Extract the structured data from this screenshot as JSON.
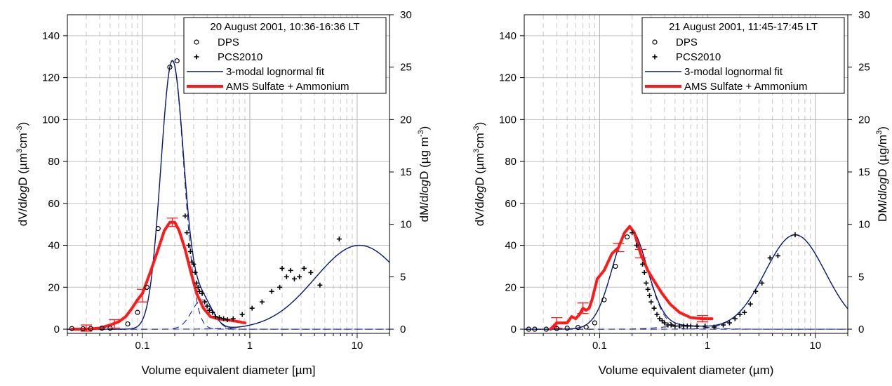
{
  "chart_data": [
    {
      "type": "line",
      "title": "20 August 2001, 10:36-16:36 LT",
      "xlabel": "Volume equivalent diameter [µm]",
      "ylabel": {
        "pre": "dV/d",
        "italic": "log",
        "post": "D (µm",
        "sup1": "3",
        "mid": "cm",
        "sup2": "-3",
        "end": ")"
      },
      "y2label": {
        "pre": "dM/d",
        "italic": "log",
        "post": "D (µg m",
        "sup1": "-3",
        "end": ")"
      },
      "xscale": "log",
      "xlim": [
        0.02,
        20
      ],
      "ylim": [
        -2,
        150
      ],
      "y2lim": [
        -0.4,
        30
      ],
      "x_ticks": [
        {
          "v": 0.1,
          "label": "0.1"
        },
        {
          "v": 1,
          "label": "1"
        },
        {
          "v": 10,
          "label": "10"
        }
      ],
      "y_ticks": [
        0,
        20,
        40,
        60,
        80,
        100,
        120,
        140
      ],
      "y2_ticks": [
        0,
        5,
        10,
        15,
        20,
        25,
        30
      ],
      "grid": true,
      "legend_position": "top-right",
      "legend": [
        {
          "label": "DPS",
          "marker": "circle"
        },
        {
          "label": "PCS2010",
          "marker": "plus"
        },
        {
          "label": "3-modal lognormal fit",
          "marker": "thin-line"
        },
        {
          "label": "AMS Sulfate + Ammonium",
          "marker": "thick-line"
        }
      ],
      "dps": [
        [
          0.022,
          0.3
        ],
        [
          0.028,
          0.2
        ],
        [
          0.033,
          0.3
        ],
        [
          0.042,
          0.5
        ],
        [
          0.05,
          0.5
        ],
        [
          0.073,
          2.5
        ],
        [
          0.09,
          8
        ],
        [
          0.11,
          20
        ],
        [
          0.14,
          48
        ],
        [
          0.18,
          125
        ],
        [
          0.21,
          128
        ]
      ],
      "pcs": [
        [
          0.25,
          54
        ],
        [
          0.26,
          46
        ],
        [
          0.27,
          40
        ],
        [
          0.28,
          37
        ],
        [
          0.29,
          32
        ],
        [
          0.3,
          31
        ],
        [
          0.31,
          27
        ],
        [
          0.32,
          22
        ],
        [
          0.33,
          20
        ],
        [
          0.34,
          18
        ],
        [
          0.36,
          17
        ],
        [
          0.38,
          13
        ],
        [
          0.4,
          11
        ],
        [
          0.42,
          9
        ],
        [
          0.45,
          8
        ],
        [
          0.48,
          6
        ],
        [
          0.52,
          5.5
        ],
        [
          0.57,
          5
        ],
        [
          0.62,
          4.5
        ],
        [
          0.7,
          5
        ],
        [
          0.85,
          7
        ],
        [
          1.05,
          10
        ],
        [
          1.3,
          13
        ],
        [
          1.6,
          18
        ],
        [
          1.9,
          20
        ],
        [
          2.0,
          29
        ],
        [
          2.2,
          25
        ],
        [
          2.4,
          28
        ],
        [
          2.6,
          24
        ],
        [
          2.9,
          25
        ],
        [
          3.2,
          29
        ],
        [
          3.7,
          27
        ],
        [
          4.5,
          21
        ],
        [
          6.8,
          43
        ]
      ],
      "fit_total_modes": [
        {
          "A": 128,
          "dg": 0.19,
          "sg": 1.28
        },
        {
          "A": 14,
          "dg": 0.36,
          "sg": 1.25
        },
        {
          "A": 40,
          "dg": 10.5,
          "sg": 2.6
        }
      ],
      "fit_mode_dashed": true,
      "ams": [
        [
          0.022,
          0
        ],
        [
          0.03,
          0
        ],
        [
          0.04,
          0.5
        ],
        [
          0.05,
          2
        ],
        [
          0.06,
          3.5
        ],
        [
          0.07,
          6
        ],
        [
          0.08,
          10
        ],
        [
          0.09,
          14
        ],
        [
          0.1,
          17
        ],
        [
          0.12,
          28
        ],
        [
          0.14,
          38
        ],
        [
          0.16,
          47
        ],
        [
          0.18,
          51
        ],
        [
          0.2,
          51
        ],
        [
          0.22,
          47
        ],
        [
          0.25,
          38
        ],
        [
          0.28,
          28
        ],
        [
          0.32,
          17
        ],
        [
          0.37,
          10
        ],
        [
          0.43,
          6
        ],
        [
          0.5,
          5
        ],
        [
          0.6,
          4.5
        ],
        [
          0.7,
          4
        ],
        [
          0.8,
          3.5
        ],
        [
          0.9,
          3
        ]
      ],
      "ams_errorbars": [
        [
          0.03,
          0.5,
          1.5
        ],
        [
          0.055,
          2.5,
          2
        ],
        [
          0.1,
          16,
          3
        ],
        [
          0.19,
          51,
          2
        ]
      ]
    },
    {
      "type": "line",
      "title": "21 August 2001, 11:45-17:45 LT",
      "xlabel": "Volume equivalent diameter (µm)",
      "ylabel": {
        "pre": "dV/d",
        "italic": "log",
        "post": "D (µm",
        "sup1": "3",
        "mid": "cm",
        "sup2": "-3",
        "end": ")"
      },
      "y2label": {
        "pre": "DM/d",
        "italic": "log",
        "post": "D (µg/m",
        "sup1": "3",
        "end": ")"
      },
      "xscale": "log",
      "xlim": [
        0.02,
        20
      ],
      "ylim": [
        -2,
        150
      ],
      "y2lim": [
        -0.4,
        30
      ],
      "x_ticks": [
        {
          "v": 0.1,
          "label": "0.1"
        },
        {
          "v": 1,
          "label": "1"
        },
        {
          "v": 10,
          "label": "10"
        }
      ],
      "y_ticks": [
        0,
        20,
        40,
        60,
        80,
        100,
        120,
        140
      ],
      "y2_ticks": [
        0,
        5,
        10,
        15,
        20,
        25,
        30
      ],
      "grid": true,
      "legend_position": "top-right",
      "legend": [
        {
          "label": "DPS",
          "marker": "circle"
        },
        {
          "label": "PCS2010",
          "marker": "plus"
        },
        {
          "label": "3-modal lognormal fit",
          "marker": "thin-line"
        },
        {
          "label": "AMS Sulfate + Ammonium",
          "marker": "thick-line"
        }
      ],
      "dps": [
        [
          0.022,
          0
        ],
        [
          0.025,
          0
        ],
        [
          0.032,
          0
        ],
        [
          0.04,
          0.3
        ],
        [
          0.05,
          0.5
        ],
        [
          0.063,
          0.8
        ],
        [
          0.075,
          1
        ],
        [
          0.09,
          3
        ],
        [
          0.11,
          14
        ],
        [
          0.14,
          30
        ],
        [
          0.18,
          44
        ]
      ],
      "pcs": [
        [
          0.2,
          46
        ],
        [
          0.22,
          40
        ],
        [
          0.25,
          31
        ],
        [
          0.26,
          27
        ],
        [
          0.27,
          22
        ],
        [
          0.28,
          19
        ],
        [
          0.29,
          16
        ],
        [
          0.3,
          13
        ],
        [
          0.32,
          10
        ],
        [
          0.34,
          7
        ],
        [
          0.36,
          5
        ],
        [
          0.38,
          4
        ],
        [
          0.4,
          3
        ],
        [
          0.43,
          2
        ],
        [
          0.46,
          2
        ],
        [
          0.5,
          1.5
        ],
        [
          0.55,
          1.5
        ],
        [
          0.6,
          1.5
        ],
        [
          0.65,
          1.5
        ],
        [
          0.7,
          1.5
        ],
        [
          0.8,
          1.5
        ],
        [
          0.95,
          1.5
        ],
        [
          1.15,
          1
        ],
        [
          1.4,
          2
        ],
        [
          1.6,
          3
        ],
        [
          1.8,
          5
        ],
        [
          2.0,
          7
        ],
        [
          2.2,
          8
        ],
        [
          2.5,
          12
        ],
        [
          2.8,
          18
        ],
        [
          3.2,
          22
        ],
        [
          3.8,
          34
        ],
        [
          4.5,
          35
        ],
        [
          6.5,
          45
        ]
      ],
      "fit_total_modes": [
        {
          "A": 48,
          "dg": 0.19,
          "sg": 1.45
        },
        {
          "A": 1.5,
          "dg": 0.6,
          "sg": 1.6
        },
        {
          "A": 45,
          "dg": 6.5,
          "sg": 1.9
        }
      ],
      "fit_mode_dashed": true,
      "ams": [
        [
          0.035,
          0
        ],
        [
          0.04,
          3
        ],
        [
          0.045,
          3
        ],
        [
          0.05,
          3
        ],
        [
          0.055,
          6
        ],
        [
          0.06,
          5
        ],
        [
          0.065,
          7
        ],
        [
          0.07,
          10
        ],
        [
          0.075,
          9
        ],
        [
          0.08,
          10
        ],
        [
          0.085,
          14
        ],
        [
          0.095,
          24
        ],
        [
          0.11,
          28
        ],
        [
          0.13,
          36
        ],
        [
          0.15,
          39
        ],
        [
          0.17,
          46
        ],
        [
          0.19,
          49
        ],
        [
          0.21,
          46
        ],
        [
          0.24,
          36
        ],
        [
          0.28,
          28
        ],
        [
          0.32,
          23
        ],
        [
          0.38,
          17
        ],
        [
          0.45,
          12
        ],
        [
          0.55,
          8
        ],
        [
          0.7,
          5.5
        ],
        [
          0.9,
          5
        ],
        [
          1.1,
          5
        ]
      ],
      "ams_errorbars": [
        [
          0.04,
          3,
          2.5
        ],
        [
          0.07,
          10,
          2.5
        ],
        [
          0.15,
          39,
          2
        ],
        [
          0.24,
          36,
          2
        ],
        [
          0.9,
          5,
          1.5
        ]
      ]
    }
  ]
}
